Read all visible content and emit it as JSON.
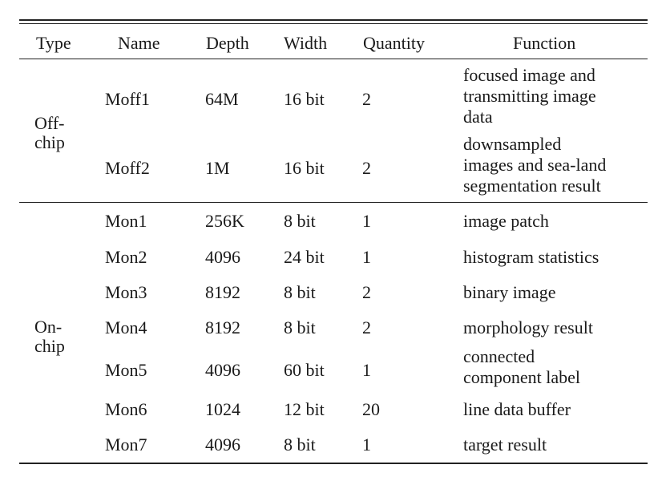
{
  "table": {
    "headers": {
      "type": "Type",
      "name": "Name",
      "depth": "Depth",
      "width": "Width",
      "quantity": "Quantity",
      "function": "Function"
    },
    "groups": {
      "off_chip_line1": "Off-",
      "off_chip_line2": "chip",
      "on_chip_line1": "On-",
      "on_chip_line2": "chip"
    },
    "rows": [
      {
        "name": "Moff1",
        "depth": "64M",
        "width": "16 bit",
        "quantity": "2",
        "function": [
          "focused image and",
          "transmitting image",
          "data"
        ]
      },
      {
        "name": "Moff2",
        "depth": "1M",
        "width": "16 bit",
        "quantity": "2",
        "function": [
          "downsampled",
          "images and sea-land",
          "segmentation result"
        ]
      },
      {
        "name": "Mon1",
        "depth": "256K",
        "width": "8 bit",
        "quantity": "1",
        "function": [
          "image patch"
        ]
      },
      {
        "name": "Mon2",
        "depth": "4096",
        "width": "24 bit",
        "quantity": "1",
        "function": [
          "histogram statistics"
        ]
      },
      {
        "name": "Mon3",
        "depth": "8192",
        "width": "8 bit",
        "quantity": "2",
        "function": [
          "binary image"
        ]
      },
      {
        "name": "Mon4",
        "depth": "8192",
        "width": "8 bit",
        "quantity": "2",
        "function": [
          "morphology result"
        ]
      },
      {
        "name": "Mon5",
        "depth": "4096",
        "width": "60 bit",
        "quantity": "1",
        "function": [
          "connected",
          "component label"
        ]
      },
      {
        "name": "Mon6",
        "depth": "1024",
        "width": "12 bit",
        "quantity": "20",
        "function": [
          "line data buffer"
        ]
      },
      {
        "name": "Mon7",
        "depth": "4096",
        "width": "8 bit",
        "quantity": "1",
        "function": [
          "target result"
        ]
      }
    ]
  }
}
